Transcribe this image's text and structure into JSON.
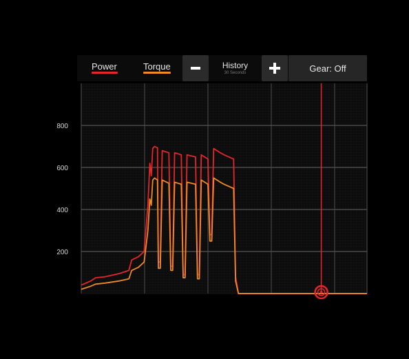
{
  "legend": {
    "power": {
      "label": "Power",
      "color": "#e8262a"
    },
    "torque": {
      "label": "Torque",
      "color": "#f28a22"
    }
  },
  "controls": {
    "minus_icon": "minus-icon",
    "plus_icon": "plus-icon",
    "history_title": "History",
    "history_subtitle": "30 Seconds",
    "gear_label": "Gear: Off"
  },
  "chart_data": {
    "type": "line",
    "y_ticks": [
      200,
      400,
      600,
      800
    ],
    "ylim": [
      0,
      1000
    ],
    "xlim": [
      0,
      30
    ],
    "grid": true,
    "cursor_x": 25.2,
    "series": [
      {
        "name": "Power",
        "color": "#e8262a",
        "points": [
          [
            0,
            40
          ],
          [
            1.0,
            60
          ],
          [
            1.5,
            75
          ],
          [
            2.5,
            80
          ],
          [
            4.0,
            95
          ],
          [
            5.0,
            110
          ],
          [
            5.3,
            160
          ],
          [
            6.0,
            175
          ],
          [
            6.6,
            200
          ],
          [
            7.0,
            420
          ],
          [
            7.2,
            620
          ],
          [
            7.35,
            560
          ],
          [
            7.5,
            690
          ],
          [
            7.7,
            700
          ],
          [
            8.0,
            693
          ],
          [
            8.1,
            150
          ],
          [
            8.3,
            150
          ],
          [
            8.5,
            680
          ],
          [
            9.2,
            670
          ],
          [
            9.4,
            130
          ],
          [
            9.6,
            130
          ],
          [
            9.8,
            670
          ],
          [
            10.5,
            660
          ],
          [
            10.7,
            90
          ],
          [
            10.9,
            90
          ],
          [
            11.1,
            660
          ],
          [
            12.0,
            650
          ],
          [
            12.2,
            90
          ],
          [
            12.4,
            90
          ],
          [
            12.6,
            660
          ],
          [
            13.3,
            640
          ],
          [
            13.5,
            280
          ],
          [
            13.7,
            280
          ],
          [
            13.9,
            690
          ],
          [
            14.6,
            670
          ],
          [
            15.0,
            660
          ],
          [
            16.0,
            640
          ],
          [
            16.2,
            80
          ],
          [
            16.5,
            0
          ],
          [
            30,
            0
          ]
        ]
      },
      {
        "name": "Torque",
        "color": "#f28a22",
        "points": [
          [
            0,
            20
          ],
          [
            1.0,
            35
          ],
          [
            1.5,
            45
          ],
          [
            2.5,
            50
          ],
          [
            4.0,
            60
          ],
          [
            5.0,
            70
          ],
          [
            5.3,
            110
          ],
          [
            6.0,
            125
          ],
          [
            6.6,
            150
          ],
          [
            7.0,
            300
          ],
          [
            7.2,
            450
          ],
          [
            7.35,
            420
          ],
          [
            7.5,
            540
          ],
          [
            7.7,
            550
          ],
          [
            8.0,
            540
          ],
          [
            8.1,
            120
          ],
          [
            8.3,
            120
          ],
          [
            8.5,
            540
          ],
          [
            9.2,
            525
          ],
          [
            9.4,
            110
          ],
          [
            9.6,
            110
          ],
          [
            9.8,
            530
          ],
          [
            10.5,
            520
          ],
          [
            10.7,
            75
          ],
          [
            10.9,
            75
          ],
          [
            11.1,
            530
          ],
          [
            12.0,
            520
          ],
          [
            12.2,
            70
          ],
          [
            12.4,
            70
          ],
          [
            12.6,
            540
          ],
          [
            13.3,
            520
          ],
          [
            13.5,
            250
          ],
          [
            13.7,
            250
          ],
          [
            13.9,
            550
          ],
          [
            14.6,
            530
          ],
          [
            15.0,
            520
          ],
          [
            16.0,
            500
          ],
          [
            16.2,
            60
          ],
          [
            16.5,
            0
          ],
          [
            30,
            0
          ]
        ]
      }
    ]
  }
}
